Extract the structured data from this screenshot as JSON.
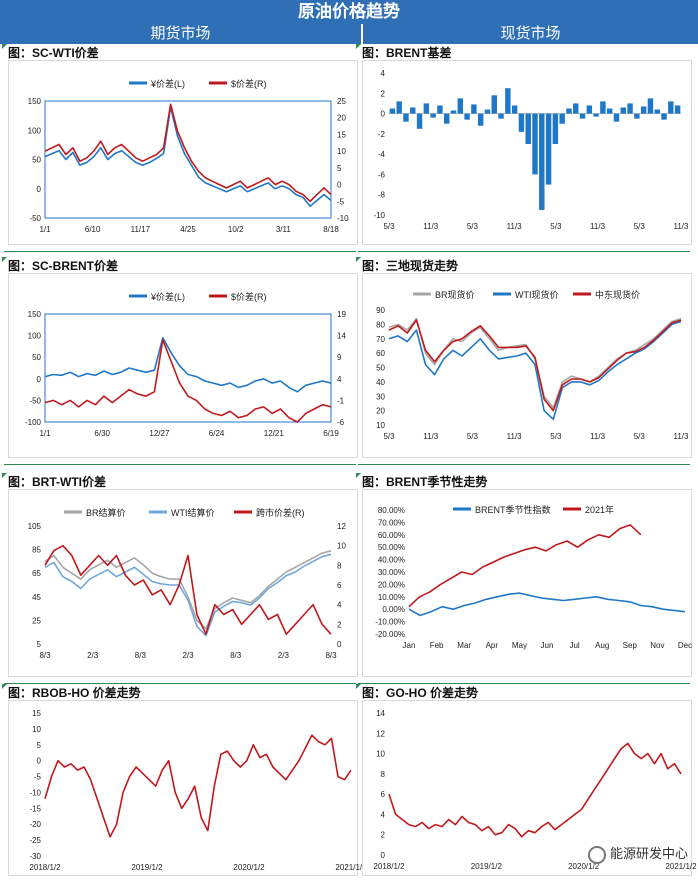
{
  "page": {
    "title": "原油价格趋势",
    "left_section": "期货市场",
    "right_section": "现货市场",
    "watermark": "能源研发中心"
  },
  "chart_data": [
    {
      "id": "sc_wti",
      "type": "line",
      "title": "图：SC-WTI价差",
      "yleft_ticks": [
        "150",
        "100",
        "50",
        "0",
        "-50"
      ],
      "yright_ticks": [
        "25",
        "20",
        "15",
        "10",
        "5",
        "0",
        "-5",
        "-10"
      ],
      "ylim_left": [
        -50,
        150
      ],
      "ylim_right": [
        -10,
        25
      ],
      "x_labels": [
        "1/1",
        "6/10",
        "11/17",
        "4/25",
        "10/2",
        "3/11",
        "8/18"
      ],
      "series": [
        {
          "name": "¥价差(L)",
          "axis": "left",
          "color": "#1f77c8",
          "values": [
            55,
            60,
            65,
            50,
            62,
            40,
            45,
            55,
            70,
            50,
            60,
            65,
            55,
            45,
            40,
            45,
            52,
            60,
            140,
            90,
            60,
            40,
            20,
            10,
            5,
            0,
            -5,
            0,
            5,
            -5,
            0,
            5,
            10,
            0,
            5,
            0,
            -10,
            -15,
            -30,
            -20,
            -10,
            -20
          ]
        },
        {
          "name": "$价差(R)",
          "axis": "right",
          "color": "#c0191c",
          "values": [
            10,
            11,
            12,
            9,
            11,
            7,
            8,
            10,
            13,
            9,
            11,
            12,
            10,
            8,
            7,
            8,
            9,
            11,
            24,
            16,
            11,
            7,
            4,
            2,
            1,
            0,
            -1,
            0,
            1,
            -1,
            0,
            1,
            2,
            0,
            1,
            0,
            -2,
            -3,
            -5,
            -3,
            -1,
            -3
          ]
        }
      ]
    },
    {
      "id": "brent_basis",
      "type": "bar",
      "title": "图：BRENT基差",
      "y_ticks": [
        "4",
        "2",
        "0",
        "-2",
        "-4",
        "-6",
        "-8",
        "-10"
      ],
      "ylim": [
        -10,
        4
      ],
      "x_labels": [
        "5/3",
        "11/3",
        "5/3",
        "11/3",
        "5/3",
        "11/3",
        "5/3",
        "11/3"
      ],
      "series": [
        {
          "name": "BRENT基差",
          "color": "#1f77c8",
          "values": [
            0.5,
            1.2,
            -0.8,
            0.6,
            -1.5,
            1.0,
            -0.4,
            0.8,
            -1.0,
            0.3,
            1.5,
            -0.6,
            0.9,
            -1.2,
            0.4,
            1.8,
            -0.5,
            2.5,
            0.8,
            -1.8,
            -3,
            -6,
            -9.5,
            -7,
            -3,
            -1,
            0.5,
            1.0,
            -0.5,
            0.8,
            -0.3,
            1.2,
            0.5,
            -0.8,
            0.6,
            1.0,
            -0.5,
            0.7,
            1.5,
            0.4,
            -0.6,
            1.2,
            0.8
          ]
        }
      ]
    },
    {
      "id": "sc_brent",
      "type": "line",
      "title": "图：SC-BRENT价差",
      "yleft_ticks": [
        "150",
        "100",
        "50",
        "0",
        "-50",
        "-100"
      ],
      "yright_ticks": [
        "19",
        "14",
        "9",
        "4",
        "-1",
        "-6"
      ],
      "ylim_left": [
        -100,
        150
      ],
      "ylim_right": [
        -6,
        19
      ],
      "x_labels": [
        "1/1",
        "6/30",
        "12/27",
        "6/24",
        "12/21",
        "6/19"
      ],
      "series": [
        {
          "name": "¥价差(L)",
          "axis": "left",
          "color": "#1f77c8",
          "values": [
            5,
            10,
            8,
            15,
            5,
            12,
            8,
            18,
            10,
            15,
            25,
            20,
            15,
            20,
            95,
            60,
            30,
            10,
            5,
            -5,
            -10,
            -15,
            -10,
            -20,
            -15,
            -5,
            0,
            -10,
            -5,
            -20,
            -30,
            -15,
            -10,
            -5,
            -10
          ]
        },
        {
          "name": "$价差(R)",
          "axis": "right",
          "color": "#c0191c",
          "values": [
            -1.5,
            -1,
            -2,
            -1,
            -2.5,
            -1,
            -2,
            0,
            -1.5,
            0,
            1.5,
            0.5,
            0,
            1,
            13,
            8,
            3,
            0,
            -1,
            -3,
            -4,
            -4.5,
            -3.5,
            -5,
            -4.5,
            -3,
            -2.5,
            -4,
            -3,
            -5,
            -6,
            -4,
            -3,
            -2,
            -2.5
          ]
        }
      ]
    },
    {
      "id": "three_spot",
      "type": "line",
      "title": "图：三地现货走势",
      "y_ticks": [
        "90",
        "80",
        "70",
        "60",
        "50",
        "40",
        "30",
        "20",
        "10"
      ],
      "ylim": [
        10,
        90
      ],
      "x_labels": [
        "5/3",
        "11/3",
        "5/3",
        "11/3",
        "5/3",
        "11/3",
        "5/3",
        "11/3"
      ],
      "series": [
        {
          "name": "BR现货价",
          "color": "#a6a6a6",
          "values": [
            78,
            80,
            76,
            84,
            60,
            52,
            62,
            70,
            68,
            74,
            78,
            70,
            62,
            64,
            65,
            66,
            56,
            30,
            22,
            40,
            44,
            42,
            40,
            44,
            50,
            56,
            60,
            62,
            66,
            70,
            76,
            82,
            84
          ]
        },
        {
          "name": "WTI现货价",
          "color": "#1f77c8",
          "values": [
            70,
            72,
            68,
            76,
            52,
            45,
            56,
            62,
            58,
            64,
            70,
            62,
            56,
            57,
            58,
            60,
            52,
            20,
            14,
            36,
            40,
            40,
            38,
            41,
            47,
            52,
            56,
            60,
            63,
            68,
            74,
            80,
            82
          ]
        },
        {
          "name": "中东现货价",
          "color": "#c0191c",
          "values": [
            76,
            79,
            74,
            83,
            62,
            54,
            62,
            68,
            70,
            75,
            79,
            72,
            64,
            64,
            64,
            65,
            57,
            28,
            20,
            38,
            42,
            42,
            40,
            43,
            49,
            55,
            60,
            61,
            64,
            69,
            75,
            81,
            83
          ]
        }
      ]
    },
    {
      "id": "brt_wti",
      "type": "line",
      "title": "图：BRT-WTI价差",
      "yleft_ticks": [
        "105",
        "85",
        "65",
        "45",
        "25",
        "5"
      ],
      "yright_ticks": [
        "12",
        "10",
        "8",
        "6",
        "4",
        "2",
        "0"
      ],
      "ylim_left": [
        5,
        105
      ],
      "ylim_right": [
        0,
        12
      ],
      "x_labels": [
        "8/3",
        "2/3",
        "8/3",
        "2/3",
        "8/3",
        "2/3",
        "8/3"
      ],
      "series": [
        {
          "name": "BR结算价",
          "axis": "left",
          "color": "#a6a6a6",
          "values": [
            75,
            80,
            70,
            65,
            60,
            68,
            72,
            76,
            70,
            74,
            78,
            72,
            65,
            62,
            60,
            60,
            45,
            25,
            18,
            35,
            40,
            44,
            42,
            40,
            46,
            54,
            60,
            66,
            70,
            74,
            78,
            82,
            84
          ]
        },
        {
          "name": "WTI结算价",
          "axis": "left",
          "color": "#6fa8dc",
          "values": [
            70,
            74,
            62,
            58,
            52,
            60,
            64,
            68,
            62,
            66,
            70,
            64,
            58,
            56,
            55,
            55,
            42,
            20,
            12,
            32,
            37,
            41,
            40,
            38,
            44,
            52,
            57,
            63,
            66,
            71,
            75,
            79,
            81
          ]
        },
        {
          "name": "跨市价差(R)",
          "axis": "right",
          "color": "#c0191c",
          "values": [
            8,
            9.5,
            10,
            9,
            7,
            8,
            9,
            8,
            9,
            7,
            6,
            6.5,
            5,
            5.5,
            4,
            6,
            9,
            3,
            1,
            4,
            3,
            3.5,
            2,
            3,
            4,
            2.5,
            3,
            1,
            2,
            3,
            4,
            2,
            1
          ]
        }
      ]
    },
    {
      "id": "brent_season",
      "type": "line",
      "title": "图：BRENT季节性走势",
      "y_ticks": [
        "80.00%",
        "70.00%",
        "60.00%",
        "50.00%",
        "40.00%",
        "30.00%",
        "20.00%",
        "10.00%",
        "0.00%",
        "-10.00%",
        "-20.00%"
      ],
      "ylim": [
        -20,
        80
      ],
      "x_labels": [
        "Jan",
        "Feb",
        "Mar",
        "Apr",
        "May",
        "Jun",
        "Jul",
        "Aug",
        "Sep",
        "Nov",
        "Dec"
      ],
      "series": [
        {
          "name": "BRENT季节性指数",
          "color": "#1f77c8",
          "values": [
            0,
            -5,
            -2,
            2,
            0,
            3,
            5,
            8,
            10,
            12,
            13,
            11,
            9,
            8,
            7,
            8,
            9,
            10,
            8,
            7,
            6,
            3,
            2,
            0,
            -1,
            -2
          ]
        },
        {
          "name": "2021年",
          "color": "#c0191c",
          "values": [
            2,
            10,
            14,
            20,
            25,
            30,
            28,
            34,
            38,
            42,
            45,
            48,
            50,
            47,
            52,
            55,
            50,
            56,
            60,
            58,
            65,
            68,
            60
          ]
        }
      ]
    },
    {
      "id": "rbob_ho",
      "type": "line",
      "title": "图：RBOB-HO 价差走势",
      "y_ticks": [
        "15",
        "10",
        "5",
        "0",
        "-5",
        "-10",
        "-15",
        "-20",
        "-25",
        "-30"
      ],
      "ylim": [
        -30,
        15
      ],
      "x_labels": [
        "2018/1/2",
        "2019/1/2",
        "2020/1/2",
        "2021/1/2"
      ],
      "series": [
        {
          "name": "RBOB-HO",
          "color": "#c0191c",
          "values": [
            -12,
            -5,
            0,
            -2,
            -1,
            -3,
            -2,
            -6,
            -12,
            -18,
            -24,
            -20,
            -10,
            -5,
            -2,
            -4,
            -6,
            -8,
            -3,
            0,
            -10,
            -15,
            -12,
            -8,
            -18,
            -22,
            -8,
            2,
            3,
            0,
            -2,
            0,
            5,
            1,
            2,
            -2,
            -4,
            -6,
            -3,
            0,
            4,
            8,
            6,
            5,
            7,
            -5,
            -6,
            -3
          ]
        }
      ]
    },
    {
      "id": "go_ho",
      "type": "line",
      "title": "图：GO-HO 价差走势",
      "y_ticks": [
        "14",
        "12",
        "10",
        "8",
        "6",
        "4",
        "2",
        "0"
      ],
      "ylim": [
        0,
        14
      ],
      "x_labels": [
        "2018/1/2",
        "2019/1/2",
        "2020/1/2",
        "2021/1/2"
      ],
      "series": [
        {
          "name": "GO-HO",
          "color": "#c0191c",
          "values": [
            6,
            4,
            3.5,
            3,
            2.8,
            3.2,
            2.6,
            3,
            2.8,
            3.5,
            3,
            3.8,
            3.2,
            3,
            2.4,
            2.8,
            2,
            2.2,
            3,
            2.6,
            1.8,
            2.4,
            2.2,
            2.8,
            3.2,
            2.5,
            3,
            3.5,
            4,
            4.5,
            5.5,
            6.5,
            7.5,
            8.5,
            9.5,
            10.5,
            11,
            10,
            9.5,
            10,
            9,
            10,
            8.5,
            9,
            8
          ]
        }
      ]
    }
  ]
}
